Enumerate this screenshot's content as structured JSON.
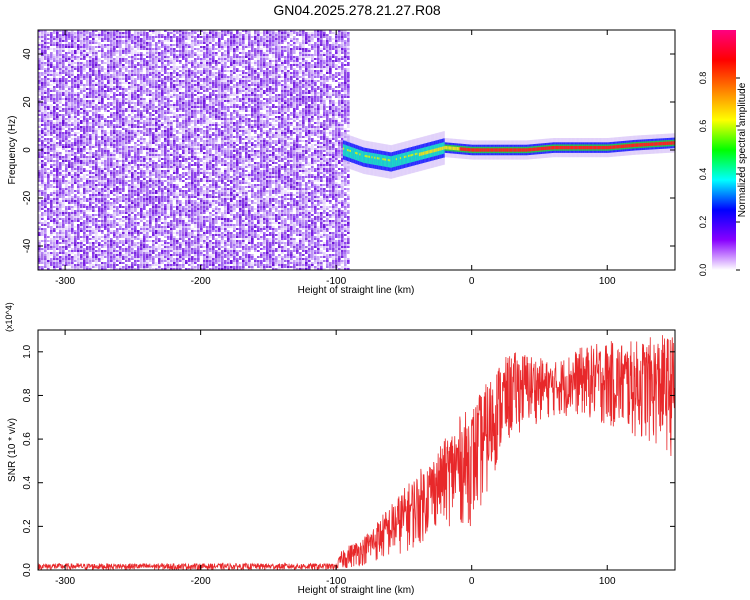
{
  "title": "GN04.2025.278.21.27.R08",
  "chart_data": [
    {
      "type": "heatmap",
      "xlabel": "Height of straight line (km)",
      "ylabel": "Frequency (Hz)",
      "xlim": [
        -320,
        150
      ],
      "ylim": [
        -50,
        50
      ],
      "x_ticks": [
        -300,
        -200,
        -100,
        0,
        100
      ],
      "y_ticks": [
        -40,
        -20,
        0,
        20,
        40
      ],
      "colorbar": {
        "label": "Normalized spectral amplitude",
        "range": [
          0,
          1
        ],
        "ticks": [
          "0.0",
          "0.2",
          "0.4",
          "0.6",
          "0.8"
        ],
        "colors": [
          "#ffffff",
          "#8800ff",
          "#0000ff",
          "#00ffff",
          "#00ff00",
          "#ffff00",
          "#ff8000",
          "#ff0000",
          "#ff0080"
        ]
      },
      "regions": [
        {
          "x_from": -320,
          "x_to": -90,
          "description_value": "broadband noise across all frequencies",
          "amplitude": 0.1
        },
        {
          "x_from": -90,
          "x_to": 150,
          "description_value": "narrowband signal near 0 Hz",
          "amplitude": 0.9
        }
      ],
      "signal_track": {
        "x": [
          -95,
          -80,
          -60,
          -40,
          -20,
          0,
          20,
          40,
          60,
          80,
          100,
          120,
          150
        ],
        "freq": [
          0,
          -3,
          -5,
          -2,
          1,
          0,
          0,
          0,
          1,
          1,
          1,
          2,
          3
        ]
      }
    },
    {
      "type": "line",
      "xlabel": "Height of straight line (km)",
      "ylabel": "SNR (10 * v/v)",
      "y_multiplier": "(x10^4)",
      "xlim": [
        -320,
        150
      ],
      "ylim": [
        0,
        1.1
      ],
      "x_ticks": [
        -300,
        -200,
        -100,
        0,
        100
      ],
      "y_ticks": [
        0.0,
        0.2,
        0.4,
        0.6,
        0.8,
        1.0
      ],
      "color": "#e8282a",
      "envelope": {
        "x": [
          -320,
          -100,
          -95,
          -80,
          -60,
          -40,
          -25,
          -10,
          0,
          10,
          20,
          30,
          40,
          60,
          80,
          100,
          120,
          140,
          150
        ],
        "low": [
          0.0,
          0.0,
          0.0,
          0.02,
          0.05,
          0.1,
          0.2,
          0.2,
          0.2,
          0.3,
          0.5,
          0.6,
          0.65,
          0.7,
          0.7,
          0.65,
          0.6,
          0.55,
          0.5
        ],
        "high": [
          0.03,
          0.03,
          0.1,
          0.15,
          0.3,
          0.45,
          0.55,
          0.7,
          0.75,
          0.85,
          0.95,
          1.0,
          1.0,
          0.95,
          1.02,
          1.05,
          1.05,
          1.08,
          1.08
        ]
      }
    }
  ]
}
